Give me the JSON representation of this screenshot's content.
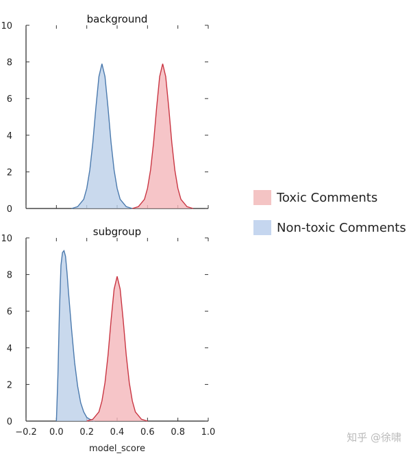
{
  "chart_data": {
    "type": "area",
    "x_range": [
      -0.2,
      1.0
    ],
    "x_ticks": [
      "−0.2",
      "0.0",
      "0.2",
      "0.4",
      "0.6",
      "0.8",
      "1.0"
    ],
    "x_tick_values": [
      -0.2,
      0.0,
      0.2,
      0.4,
      0.6,
      0.8,
      1.0
    ],
    "y_range": [
      0,
      10
    ],
    "y_ticks": [
      "0",
      "2",
      "4",
      "6",
      "8",
      "10"
    ],
    "y_tick_values": [
      0,
      2,
      4,
      6,
      8,
      10
    ],
    "xlabel": "model_score",
    "grid": false,
    "legend_position": "right",
    "colors": {
      "toxic_fill": "#f4b6ba",
      "toxic_line": "#c93542",
      "nontoxic_fill": "#bccfe8",
      "nontoxic_line": "#4a79ad"
    },
    "legend": [
      {
        "label": "Toxic Comments",
        "color": "#f4c4c4"
      },
      {
        "label": "Non-toxic Comments",
        "color": "#c5d6ef"
      }
    ],
    "panels": [
      {
        "title": "background",
        "series": [
          {
            "name": "Non-toxic Comments",
            "color": "#4a79ad",
            "x": [
              0.1,
              0.14,
              0.18,
              0.2,
              0.22,
              0.24,
              0.26,
              0.28,
              0.3,
              0.32,
              0.34,
              0.36,
              0.38,
              0.4,
              0.42,
              0.46,
              0.5
            ],
            "y": [
              0.0,
              0.1,
              0.5,
              1.1,
              2.1,
              3.6,
              5.5,
              7.2,
              7.9,
              7.2,
              5.5,
              3.6,
              2.1,
              1.1,
              0.5,
              0.1,
              0.0
            ]
          },
          {
            "name": "Toxic Comments",
            "color": "#c93542",
            "x": [
              0.5,
              0.54,
              0.58,
              0.6,
              0.62,
              0.64,
              0.66,
              0.68,
              0.7,
              0.72,
              0.74,
              0.76,
              0.78,
              0.8,
              0.82,
              0.86,
              0.9
            ],
            "y": [
              0.0,
              0.1,
              0.5,
              1.1,
              2.1,
              3.6,
              5.5,
              7.2,
              7.9,
              7.2,
              5.5,
              3.6,
              2.1,
              1.1,
              0.5,
              0.1,
              0.0
            ]
          }
        ]
      },
      {
        "title": "subgroup",
        "series": [
          {
            "name": "Non-toxic Comments",
            "color": "#4a79ad",
            "x": [
              0.0,
              0.01,
              0.02,
              0.03,
              0.04,
              0.05,
              0.06,
              0.07,
              0.08,
              0.1,
              0.12,
              0.14,
              0.16,
              0.18,
              0.2,
              0.22,
              0.25
            ],
            "y": [
              0.0,
              2.5,
              6.0,
              8.5,
              9.2,
              9.3,
              9.0,
              8.1,
              7.0,
              5.0,
              3.2,
              1.9,
              1.0,
              0.5,
              0.2,
              0.1,
              0.0
            ]
          },
          {
            "name": "Toxic Comments",
            "color": "#c93542",
            "x": [
              0.2,
              0.24,
              0.28,
              0.3,
              0.32,
              0.34,
              0.36,
              0.38,
              0.4,
              0.42,
              0.44,
              0.46,
              0.48,
              0.5,
              0.52,
              0.56,
              0.6
            ],
            "y": [
              0.0,
              0.1,
              0.5,
              1.1,
              2.1,
              3.6,
              5.5,
              7.2,
              7.9,
              7.2,
              5.5,
              3.6,
              2.1,
              1.1,
              0.5,
              0.1,
              0.0
            ]
          }
        ]
      }
    ]
  },
  "watermark": "知乎 @徐啸"
}
